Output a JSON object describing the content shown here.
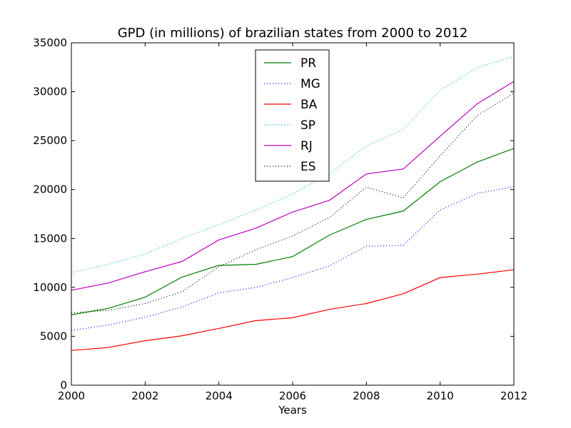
{
  "chart_data": {
    "type": "line",
    "title": "GPD (in millions) of brazilian states from 2000 to 2012",
    "xlabel": "Years",
    "ylabel": "",
    "xlim": [
      2000,
      2012
    ],
    "ylim": [
      0,
      35000
    ],
    "xticks": [
      2000,
      2002,
      2004,
      2006,
      2008,
      2010,
      2012
    ],
    "yticks": [
      0,
      5000,
      10000,
      15000,
      20000,
      25000,
      30000,
      35000
    ],
    "grid": false,
    "legend_position": "top-center",
    "x": [
      2000,
      2001,
      2002,
      2003,
      2004,
      2005,
      2006,
      2007,
      2008,
      2009,
      2010,
      2011,
      2012
    ],
    "series": [
      {
        "name": "PR",
        "color": "#008000",
        "style": "solid",
        "values": [
          7200,
          7850,
          9000,
          11050,
          12250,
          12350,
          13150,
          15350,
          16950,
          17800,
          20800,
          22800,
          24200
        ]
      },
      {
        "name": "MG",
        "color": "#0000ff",
        "style": "dotted",
        "values": [
          5600,
          6150,
          6950,
          8000,
          9450,
          10000,
          11000,
          12200,
          14200,
          14300,
          17900,
          19600,
          20300
        ]
      },
      {
        "name": "BA",
        "color": "#ff0000",
        "style": "solid",
        "values": [
          3550,
          3850,
          4550,
          5050,
          5800,
          6600,
          6900,
          7750,
          8350,
          9350,
          11000,
          11350,
          11800
        ]
      },
      {
        "name": "SP",
        "color": "#00bfbf",
        "style": "dotted",
        "values": [
          11500,
          12350,
          13400,
          15000,
          16400,
          17900,
          19550,
          21650,
          24450,
          26150,
          30150,
          32450,
          33600
        ]
      },
      {
        "name": "RJ",
        "color": "#bf00bf",
        "style": "solid",
        "values": [
          9700,
          10450,
          11600,
          12650,
          14850,
          16050,
          17700,
          18900,
          21600,
          22100,
          25450,
          28750,
          31050
        ]
      },
      {
        "name": "ES",
        "color": "#000000",
        "style": "dotted",
        "values": [
          7400,
          7650,
          8350,
          9550,
          12100,
          13850,
          15250,
          17150,
          20250,
          19150,
          23450,
          27550,
          29850
        ]
      }
    ]
  }
}
